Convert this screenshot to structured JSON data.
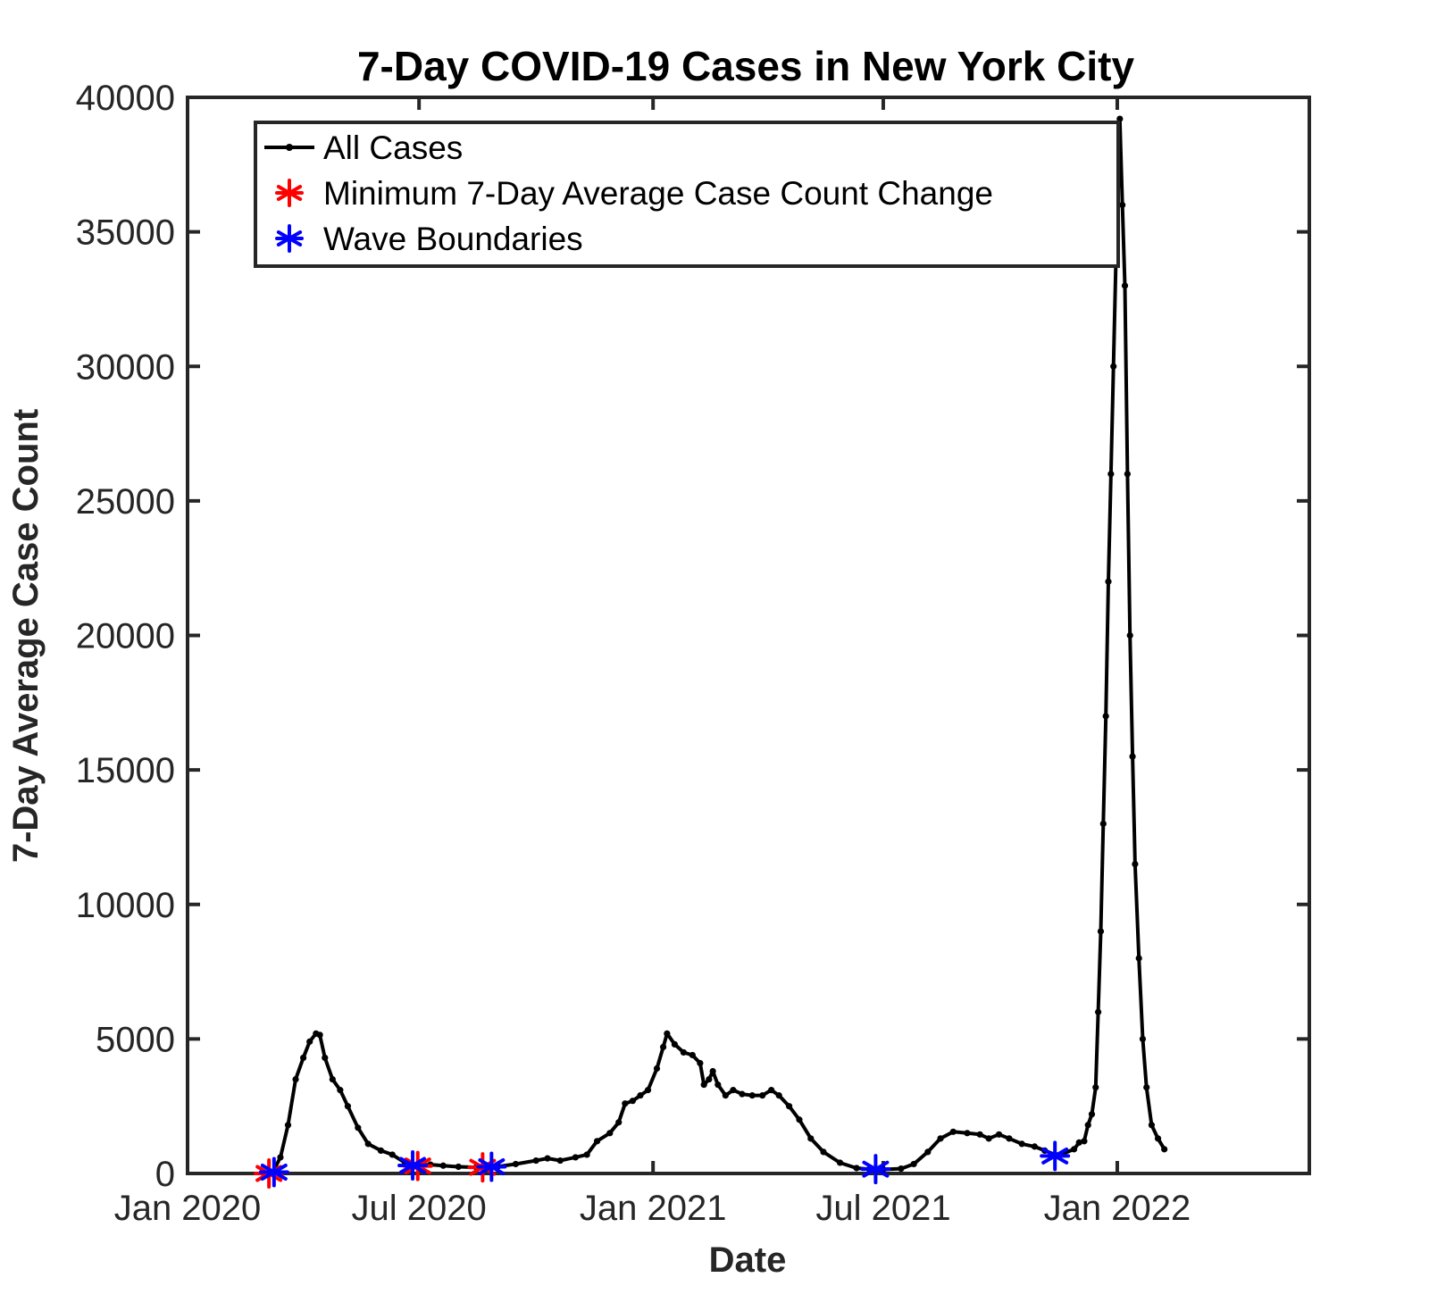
{
  "chart_data": {
    "type": "line",
    "title": "7-Day COVID-19 Cases in New York City",
    "xlabel": "Date",
    "ylabel": "7-Day Average Case Count",
    "xlim": [
      "2020-01-01",
      "2022-06-01"
    ],
    "ylim": [
      0,
      40000
    ],
    "x_ticks": [
      {
        "date": "2020-01-01",
        "label": "Jan 2020"
      },
      {
        "date": "2020-07-01",
        "label": "Jul 2020"
      },
      {
        "date": "2021-01-01",
        "label": "Jan 2021"
      },
      {
        "date": "2021-07-01",
        "label": "Jul 2021"
      },
      {
        "date": "2022-01-01",
        "label": "Jan 2022"
      }
    ],
    "y_ticks": [
      0,
      5000,
      10000,
      15000,
      20000,
      25000,
      30000,
      35000,
      40000
    ],
    "grid": false,
    "legend_position": "top-left",
    "colors": {
      "all_cases": "#000000",
      "minimum_change": "#ff0000",
      "wave_boundaries": "#0000ff",
      "axes": "#262626"
    },
    "series": [
      {
        "name": "All Cases",
        "marker": "dot",
        "points": [
          [
            "2020-03-01",
            0
          ],
          [
            "2020-03-08",
            50
          ],
          [
            "2020-03-14",
            600
          ],
          [
            "2020-03-20",
            1800
          ],
          [
            "2020-03-26",
            3500
          ],
          [
            "2020-04-01",
            4300
          ],
          [
            "2020-04-06",
            4900
          ],
          [
            "2020-04-11",
            5200
          ],
          [
            "2020-04-14",
            5150
          ],
          [
            "2020-04-18",
            4300
          ],
          [
            "2020-04-24",
            3500
          ],
          [
            "2020-04-30",
            3100
          ],
          [
            "2020-05-06",
            2500
          ],
          [
            "2020-05-14",
            1700
          ],
          [
            "2020-05-22",
            1100
          ],
          [
            "2020-06-01",
            850
          ],
          [
            "2020-06-10",
            700
          ],
          [
            "2020-06-20",
            400
          ],
          [
            "2020-07-01",
            300
          ],
          [
            "2020-07-10",
            330
          ],
          [
            "2020-07-20",
            290
          ],
          [
            "2020-08-01",
            250
          ],
          [
            "2020-08-15",
            230
          ],
          [
            "2020-09-01",
            260
          ],
          [
            "2020-09-15",
            350
          ],
          [
            "2020-10-01",
            480
          ],
          [
            "2020-10-10",
            560
          ],
          [
            "2020-10-20",
            480
          ],
          [
            "2020-11-01",
            600
          ],
          [
            "2020-11-10",
            700
          ],
          [
            "2020-11-18",
            1200
          ],
          [
            "2020-11-28",
            1500
          ],
          [
            "2020-12-05",
            1900
          ],
          [
            "2020-12-10",
            2600
          ],
          [
            "2020-12-16",
            2700
          ],
          [
            "2020-12-22",
            2900
          ],
          [
            "2020-12-28",
            3100
          ],
          [
            "2021-01-04",
            3900
          ],
          [
            "2021-01-09",
            4700
          ],
          [
            "2021-01-12",
            5200
          ],
          [
            "2021-01-18",
            4800
          ],
          [
            "2021-01-25",
            4500
          ],
          [
            "2021-02-01",
            4400
          ],
          [
            "2021-02-07",
            4100
          ],
          [
            "2021-02-10",
            3300
          ],
          [
            "2021-02-14",
            3500
          ],
          [
            "2021-02-17",
            3800
          ],
          [
            "2021-02-21",
            3300
          ],
          [
            "2021-02-27",
            2900
          ],
          [
            "2021-03-05",
            3100
          ],
          [
            "2021-03-12",
            2950
          ],
          [
            "2021-03-20",
            2900
          ],
          [
            "2021-03-28",
            2900
          ],
          [
            "2021-04-04",
            3100
          ],
          [
            "2021-04-10",
            2900
          ],
          [
            "2021-04-18",
            2500
          ],
          [
            "2021-04-26",
            2000
          ],
          [
            "2021-05-05",
            1300
          ],
          [
            "2021-05-15",
            800
          ],
          [
            "2021-05-28",
            400
          ],
          [
            "2021-06-10",
            200
          ],
          [
            "2021-06-20",
            160
          ],
          [
            "2021-07-01",
            150
          ],
          [
            "2021-07-15",
            180
          ],
          [
            "2021-07-25",
            350
          ],
          [
            "2021-08-05",
            800
          ],
          [
            "2021-08-15",
            1300
          ],
          [
            "2021-08-25",
            1550
          ],
          [
            "2021-09-05",
            1500
          ],
          [
            "2021-09-15",
            1450
          ],
          [
            "2021-09-22",
            1300
          ],
          [
            "2021-09-30",
            1450
          ],
          [
            "2021-10-08",
            1300
          ],
          [
            "2021-10-18",
            1100
          ],
          [
            "2021-10-28",
            1000
          ],
          [
            "2021-11-05",
            850
          ],
          [
            "2021-11-13",
            700
          ],
          [
            "2021-11-20",
            750
          ],
          [
            "2021-11-28",
            900
          ],
          [
            "2021-12-02",
            1150
          ],
          [
            "2021-12-06",
            1200
          ],
          [
            "2021-12-09",
            1800
          ],
          [
            "2021-12-12",
            2200
          ],
          [
            "2021-12-15",
            3200
          ],
          [
            "2021-12-17",
            6000
          ],
          [
            "2021-12-19",
            9000
          ],
          [
            "2021-12-21",
            13000
          ],
          [
            "2021-12-23",
            17000
          ],
          [
            "2021-12-25",
            22000
          ],
          [
            "2021-12-27",
            26000
          ],
          [
            "2021-12-29",
            30000
          ],
          [
            "2021-12-31",
            34000
          ],
          [
            "2022-01-02",
            37000
          ],
          [
            "2022-01-03",
            39200
          ],
          [
            "2022-01-05",
            36000
          ],
          [
            "2022-01-07",
            33000
          ],
          [
            "2022-01-09",
            26000
          ],
          [
            "2022-01-11",
            20000
          ],
          [
            "2022-01-13",
            15500
          ],
          [
            "2022-01-15",
            11500
          ],
          [
            "2022-01-18",
            8000
          ],
          [
            "2022-01-21",
            5000
          ],
          [
            "2022-01-24",
            3200
          ],
          [
            "2022-01-28",
            1800
          ],
          [
            "2022-02-02",
            1300
          ],
          [
            "2022-02-07",
            900
          ]
        ]
      },
      {
        "name": "Minimum 7-Day Average Case Count Change",
        "marker": "asterisk",
        "points": [
          [
            "2020-03-05",
            0
          ],
          [
            "2020-06-30",
            280
          ],
          [
            "2020-08-20",
            230
          ]
        ]
      },
      {
        "name": "Wave Boundaries",
        "marker": "asterisk",
        "points": [
          [
            "2020-03-09",
            50
          ],
          [
            "2020-06-26",
            300
          ],
          [
            "2020-08-27",
            250
          ],
          [
            "2021-06-25",
            160
          ],
          [
            "2021-11-13",
            650
          ]
        ]
      }
    ]
  }
}
